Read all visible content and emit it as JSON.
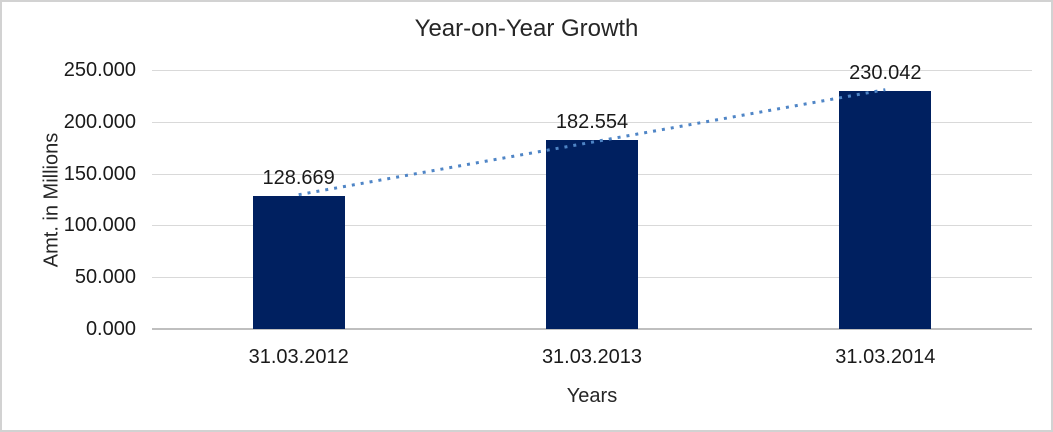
{
  "chart_data": {
    "type": "bar",
    "title": "Year-on-Year Growth",
    "xlabel": "Years",
    "ylabel": "Amt. in Millions",
    "categories": [
      "31.03.2012",
      "31.03.2013",
      "31.03.2014"
    ],
    "values": [
      128.669,
      182.554,
      230.042
    ],
    "data_labels": [
      "128.669",
      "182.554",
      "230.042"
    ],
    "ylim": [
      0,
      250
    ],
    "yticks": [
      {
        "value": 0,
        "label": "0.000"
      },
      {
        "value": 50,
        "label": "50.000"
      },
      {
        "value": 100,
        "label": "100.000"
      },
      {
        "value": 150,
        "label": "150.000"
      },
      {
        "value": 200,
        "label": "200.000"
      },
      {
        "value": 250,
        "label": "250.000"
      }
    ],
    "grid": true,
    "legend": "none",
    "trendline": {
      "type": "linear",
      "style": "dotted",
      "from_point": 0,
      "to_point": 2
    },
    "colors": {
      "bar": "#002060",
      "trendline": "#4f85c6",
      "gridline": "#d9d9d9",
      "axis_line": "#bfbfbf",
      "frame_border": "#d2d2d2",
      "text": "#1a1a1a",
      "background": "#ffffff"
    }
  }
}
